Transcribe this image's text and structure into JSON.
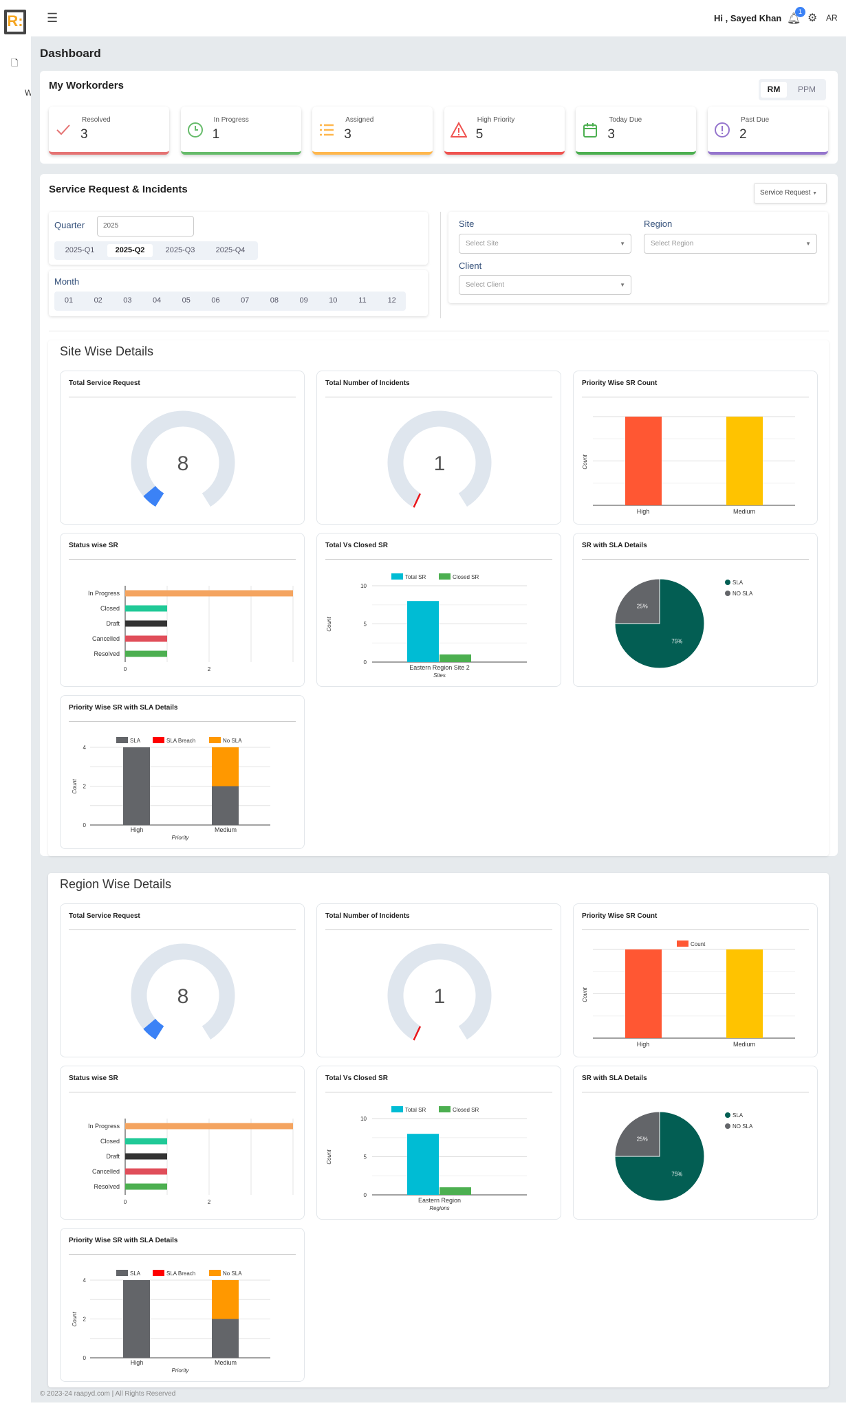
{
  "header": {
    "logo": "R:",
    "greeting": "Hi , Sayed Khan",
    "notification_count": "1",
    "lang": "AR",
    "sidebar_letter": "W"
  },
  "page_title": "Dashboard",
  "workorders": {
    "title": "My Workorders",
    "toggle": [
      "RM",
      "PPM"
    ],
    "toggle_active": "RM",
    "cards": [
      {
        "label": "Resolved",
        "value": "3",
        "icon": "check-icon",
        "color": "#e57373"
      },
      {
        "label": "In Progress",
        "value": "1",
        "icon": "clock-icon",
        "color": "#66bb6a"
      },
      {
        "label": "Assigned",
        "value": "3",
        "icon": "list-icon",
        "color": "#ffb74d"
      },
      {
        "label": "High Priority",
        "value": "5",
        "icon": "warning-icon",
        "color": "#ef5350"
      },
      {
        "label": "Today Due",
        "value": "3",
        "icon": "calendar-icon",
        "color": "#4caf50"
      },
      {
        "label": "Past Due",
        "value": "2",
        "icon": "alert-circle-icon",
        "color": "#9575cd"
      }
    ]
  },
  "sr": {
    "title": "Service Request & Incidents",
    "type_select": "Service Request",
    "quarter_label": "Quarter",
    "year": "2025",
    "quarters": [
      "2025-Q1",
      "2025-Q2",
      "2025-Q3",
      "2025-Q4"
    ],
    "quarter_active": "2025-Q2",
    "month_label": "Month",
    "months": [
      "01",
      "02",
      "03",
      "04",
      "05",
      "06",
      "07",
      "08",
      "09",
      "10",
      "11",
      "12"
    ],
    "site_label": "Site",
    "site_placeholder": "Select Site",
    "region_label": "Region",
    "region_placeholder": "Select Region",
    "client_label": "Client",
    "client_placeholder": "Select Client"
  },
  "sections": {
    "site": "Site Wise Details",
    "region": "Region Wise Details"
  },
  "chart_data": [
    {
      "type": "gauge",
      "title": "Total Service Request",
      "value": 8,
      "fill_fraction": 0.06,
      "color": "#3b82f6"
    },
    {
      "type": "gauge",
      "title": "Total Number of Incidents",
      "value": 1,
      "fill_fraction": 0.01,
      "color": "#e8161b"
    },
    {
      "type": "bar",
      "title": "Priority Wise SR Count",
      "categories": [
        "High",
        "Medium"
      ],
      "values": [
        4,
        4
      ],
      "colors": [
        "#ff5733",
        "#ffc300"
      ],
      "ylabel": "Count",
      "ylim": [
        0,
        4
      ],
      "grid": true
    },
    {
      "type": "bar",
      "orientation": "horizontal",
      "title": "Status wise SR",
      "categories": [
        "In Progress",
        "Closed",
        "Draft",
        "Cancelled",
        "Resolved"
      ],
      "values": [
        4,
        1,
        1,
        1,
        1
      ],
      "colors": [
        "#f4a460",
        "#20c997",
        "#333333",
        "#e04e5a",
        "#4caf50"
      ],
      "xticks": [
        "0",
        "2"
      ],
      "xlim": [
        0,
        4
      ],
      "grid": true
    },
    {
      "type": "bar",
      "title": "Total Vs Closed SR",
      "categories": [
        "Eastern Region Site 2"
      ],
      "series": [
        {
          "name": "Total SR",
          "values": [
            8
          ],
          "color": "#00bcd4"
        },
        {
          "name": "Closed SR",
          "values": [
            1
          ],
          "color": "#4caf50"
        }
      ],
      "xlabel": "Sites",
      "ylabel": "Count",
      "yticks": [
        "0",
        "5",
        "10"
      ],
      "ylim": [
        0,
        10
      ],
      "legend": "top"
    },
    {
      "type": "pie",
      "title": "SR with SLA Details",
      "slices": [
        {
          "name": "SLA",
          "value": 75,
          "label": "75%",
          "color": "#035e53"
        },
        {
          "name": "NO SLA",
          "value": 25,
          "label": "25%",
          "color": "#636569"
        }
      ],
      "legend": "right"
    },
    {
      "type": "bar",
      "stacked": true,
      "title": "Priority Wise SR with SLA Details",
      "categories": [
        "High",
        "Medium"
      ],
      "series": [
        {
          "name": "SLA",
          "values": [
            4,
            2
          ],
          "color": "#636569"
        },
        {
          "name": "SLA Breach",
          "values": [
            0,
            0
          ],
          "color": "#ff0000"
        },
        {
          "name": "No SLA",
          "values": [
            0,
            2
          ],
          "color": "#ff9800"
        }
      ],
      "xlabel": "Priority",
      "ylabel": "Count",
      "yticks": [
        "0",
        "2",
        "4"
      ],
      "ylim": [
        0,
        4
      ],
      "legend": "top"
    },
    {
      "type": "gauge",
      "title": "Total Service Request",
      "value": 8,
      "fill_fraction": 0.06,
      "color": "#3b82f6"
    },
    {
      "type": "gauge",
      "title": "Total Number of Incidents",
      "value": 1,
      "fill_fraction": 0.01,
      "color": "#e8161b"
    },
    {
      "type": "bar",
      "title": "Priority Wise SR Count",
      "categories": [
        "High",
        "Medium"
      ],
      "values": [
        4,
        4
      ],
      "colors": [
        "#ff5733",
        "#ffc300"
      ],
      "ylabel": "Count",
      "ylim": [
        0,
        4
      ],
      "legend_label": "Count",
      "grid": true
    },
    {
      "type": "bar",
      "orientation": "horizontal",
      "title": "Status wise SR",
      "categories": [
        "In Progress",
        "Closed",
        "Draft",
        "Cancelled",
        "Resolved"
      ],
      "values": [
        4,
        1,
        1,
        1,
        1
      ],
      "colors": [
        "#f4a460",
        "#20c997",
        "#333333",
        "#e04e5a",
        "#4caf50"
      ],
      "xticks": [
        "0",
        "2"
      ],
      "xlim": [
        0,
        4
      ],
      "grid": true
    },
    {
      "type": "bar",
      "title": "Total Vs Closed SR",
      "categories": [
        "Eastern Region"
      ],
      "series": [
        {
          "name": "Total SR",
          "values": [
            8
          ],
          "color": "#00bcd4"
        },
        {
          "name": "Closed SR",
          "values": [
            1
          ],
          "color": "#4caf50"
        }
      ],
      "xlabel": "Regions",
      "ylabel": "Count",
      "yticks": [
        "0",
        "5",
        "10"
      ],
      "ylim": [
        0,
        10
      ],
      "legend": "top"
    },
    {
      "type": "pie",
      "title": "SR with SLA Details",
      "slices": [
        {
          "name": "SLA",
          "value": 75,
          "label": "75%",
          "color": "#035e53"
        },
        {
          "name": "NO SLA",
          "value": 25,
          "label": "25%",
          "color": "#636569"
        }
      ],
      "legend": "right"
    },
    {
      "type": "bar",
      "stacked": true,
      "title": "Priority Wise SR with SLA Details",
      "categories": [
        "High",
        "Medium"
      ],
      "series": [
        {
          "name": "SLA",
          "values": [
            4,
            2
          ],
          "color": "#636569"
        },
        {
          "name": "SLA Breach",
          "values": [
            0,
            0
          ],
          "color": "#ff0000"
        },
        {
          "name": "No SLA",
          "values": [
            0,
            2
          ],
          "color": "#ff9800"
        }
      ],
      "xlabel": "Priority",
      "ylabel": "Count",
      "yticks": [
        "0",
        "2",
        "4"
      ],
      "ylim": [
        0,
        4
      ],
      "legend": "top"
    }
  ],
  "footer": "© 2023-24 raapyd.com | All Rights Reserved"
}
